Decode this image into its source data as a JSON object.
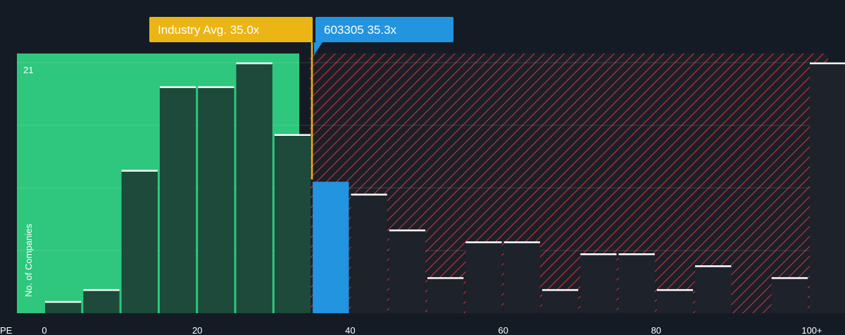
{
  "chart_data": {
    "type": "bar",
    "xlabel": "PE",
    "ylabel": "No. of Companies",
    "x_ticks": [
      "0",
      "20",
      "40",
      "60",
      "80",
      "100+"
    ],
    "y_ticks": [
      "21"
    ],
    "xlim": [
      0,
      100
    ],
    "ylim": [
      0,
      21
    ],
    "bins": [
      {
        "x0": 0,
        "x1": 5,
        "value": 1
      },
      {
        "x0": 5,
        "x1": 10,
        "value": 2
      },
      {
        "x0": 10,
        "x1": 15,
        "value": 12
      },
      {
        "x0": 15,
        "x1": 20,
        "value": 19
      },
      {
        "x0": 20,
        "x1": 25,
        "value": 19
      },
      {
        "x0": 25,
        "x1": 30,
        "value": 21
      },
      {
        "x0": 30,
        "x1": 35,
        "value": 15
      },
      {
        "x0": 35,
        "x1": 40,
        "value": 11,
        "highlight": true
      },
      {
        "x0": 40,
        "x1": 45,
        "value": 10
      },
      {
        "x0": 45,
        "x1": 50,
        "value": 7
      },
      {
        "x0": 50,
        "x1": 55,
        "value": 3
      },
      {
        "x0": 55,
        "x1": 60,
        "value": 6
      },
      {
        "x0": 60,
        "x1": 65,
        "value": 6
      },
      {
        "x0": 65,
        "x1": 70,
        "value": 2
      },
      {
        "x0": 70,
        "x1": 75,
        "value": 5
      },
      {
        "x0": 75,
        "x1": 80,
        "value": 5
      },
      {
        "x0": 80,
        "x1": 85,
        "value": 2
      },
      {
        "x0": 85,
        "x1": 90,
        "value": 4
      },
      {
        "x0": 90,
        "x1": 95,
        "value": 0
      },
      {
        "x0": 95,
        "x1": 100,
        "value": 3
      },
      {
        "x0": 100,
        "x1": 105,
        "value": 21
      }
    ],
    "industry_avg": {
      "label": "Industry Avg. 35.0x",
      "value": 35.0
    },
    "company": {
      "label": "603305 35.3x",
      "value": 35.3
    },
    "colors": {
      "background": "#151b24",
      "fair_zone": "#2ec77d",
      "overvalued_hatch": "#c4373f",
      "bar_dark": "#1d4a3a",
      "bar_overvalued": "#1e222b",
      "company_bar": "#2394df",
      "industry_avg": "#eab515",
      "bar_top": "#ffffff"
    }
  }
}
